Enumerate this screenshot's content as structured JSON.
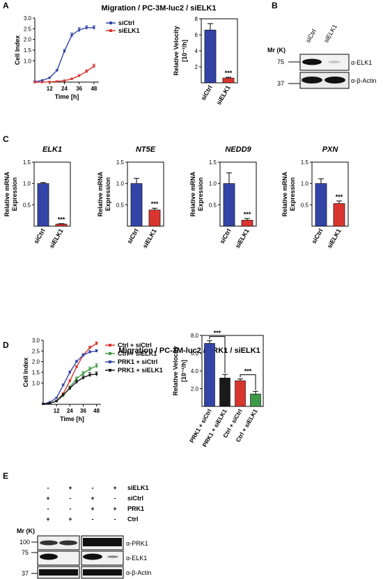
{
  "panels": {
    "A": {
      "letter": "A",
      "title": "Migration / PC-3M-luc2 / siELK1",
      "line": {
        "ylabel": "Cell Index",
        "xlabel": "Time [h]",
        "yticks": [
          "1.0",
          "1.5",
          "2.0",
          "2.5",
          "3.0"
        ],
        "xticks": [
          "12",
          "24",
          "36",
          "48"
        ]
      },
      "bar": {
        "ylabel_1": "Relative Velocity",
        "ylabel_2": "[10⁻²/h]",
        "yticks": [
          "2",
          "4",
          "6",
          "8"
        ],
        "categories": [
          "siCtrl",
          "siELK1"
        ],
        "sig": "***"
      }
    },
    "B": {
      "letter": "B",
      "mr_label": "Mr (K)",
      "lanes": [
        "siCtrl",
        "siELK1"
      ],
      "markers": [
        "75",
        "37"
      ],
      "antibodies": [
        "α-ELK1",
        "α-β-Actin"
      ]
    },
    "C": {
      "letter": "C",
      "ylabel_1": "Relative mRNA",
      "ylabel_2": "Expression",
      "yticks": [
        "0.5",
        "1.0",
        "1.5"
      ],
      "categories": [
        "siCtrl",
        "siELK1"
      ],
      "sig": "***"
    },
    "D": {
      "letter": "D",
      "title": "Migration / PC-3M-luc2 / PRK1 / siELK1",
      "line": {
        "ylabel": "Cell Index",
        "xlabel": "Time [h]",
        "yticks": [
          "1.0",
          "1.5",
          "2.0",
          "2.5",
          "3.0"
        ],
        "xticks": [
          "12",
          "24",
          "36",
          "48"
        ]
      },
      "bar": {
        "ylabel_1": "Relative Velocity",
        "ylabel_2": "[10⁻²/h]",
        "yticks": [
          "2.0",
          "4.0",
          "6.0",
          "8.0"
        ],
        "categories": [
          "PRK1 + siCtrl",
          "PRK1 + siELK1",
          "Ctrl + siCtrl",
          "Ctrl + siELK1"
        ],
        "sig": "***"
      }
    },
    "E": {
      "letter": "E",
      "rows": [
        {
          "label": "siELK1",
          "marks": [
            "-",
            "+",
            "-",
            "+"
          ]
        },
        {
          "label": "siCtrl",
          "marks": [
            "+",
            "-",
            "+",
            "-"
          ]
        },
        {
          "label": "PRK1",
          "marks": [
            "-",
            "-",
            "+",
            "+"
          ]
        },
        {
          "label": "Ctrl",
          "marks": [
            "+",
            "+",
            "-",
            "-"
          ]
        }
      ],
      "mr_label": "Mr (K)",
      "markers": [
        "100",
        "75",
        "37"
      ],
      "antibodies": [
        "α-PRK1",
        "α-ELK1",
        "α-β-Actin"
      ]
    }
  },
  "colors": {
    "siCtrl": "#3344a6",
    "siELK1": "#d8352f",
    "ctrl_siCtrl": "#d8352f",
    "ctrl_siELK1": "#3e9a46",
    "prk1_siCtrl": "#3344a6",
    "prk1_siELK1": "#1a1a1a"
  },
  "chart_data": [
    {
      "id": "A-line",
      "type": "line",
      "title": "Migration / PC-3M-luc2 / siELK1",
      "xlabel": "Time [h]",
      "ylabel": "Cell Index",
      "xlim": [
        0,
        52
      ],
      "ylim": [
        0,
        3.0
      ],
      "grid": false,
      "legend": "top-right",
      "series": [
        {
          "name": "siCtrl",
          "color": "#3344a6",
          "x": [
            0,
            6,
            12,
            18,
            24,
            30,
            36,
            42,
            48
          ],
          "y": [
            0.02,
            0.08,
            0.2,
            0.55,
            1.45,
            2.2,
            2.45,
            2.55,
            2.55
          ],
          "err": [
            0.02,
            0.02,
            0.03,
            0.05,
            0.08,
            0.1,
            0.1,
            0.09,
            0.09
          ]
        },
        {
          "name": "siELK1",
          "color": "#d8352f",
          "x": [
            0,
            6,
            12,
            18,
            24,
            30,
            36,
            42,
            48
          ],
          "y": [
            0.0,
            0.0,
            0.01,
            0.03,
            0.07,
            0.15,
            0.3,
            0.5,
            0.75
          ],
          "err": [
            0.01,
            0.01,
            0.01,
            0.02,
            0.02,
            0.04,
            0.05,
            0.07,
            0.09
          ]
        }
      ]
    },
    {
      "id": "A-bar",
      "type": "bar",
      "categories": [
        "siCtrl",
        "siELK1"
      ],
      "values": [
        6.6,
        0.6
      ],
      "errors": [
        0.8,
        0.1
      ],
      "colors": [
        "#3344a6",
        "#d8352f"
      ],
      "ylabel": "Relative Velocity [10⁻²/h]",
      "ylim": [
        0,
        8
      ],
      "annotations": [
        "***"
      ]
    },
    {
      "id": "C-ELK1",
      "type": "bar",
      "title": "ELK1",
      "categories": [
        "siCtrl",
        "siELK1"
      ],
      "values": [
        1.0,
        0.05
      ],
      "errors": [
        0.02,
        0.01
      ],
      "colors": [
        "#3344a6",
        "#d8352f"
      ],
      "ylabel": "Relative mRNA Expression",
      "ylim": [
        0,
        1.5
      ],
      "annotations": [
        "***"
      ]
    },
    {
      "id": "C-NT5E",
      "type": "bar",
      "title": "NT5E",
      "categories": [
        "siCtrl",
        "siELK1"
      ],
      "values": [
        1.0,
        0.38
      ],
      "errors": [
        0.12,
        0.04
      ],
      "colors": [
        "#3344a6",
        "#d8352f"
      ],
      "ylabel": "Relative mRNA Expression",
      "ylim": [
        0,
        1.5
      ],
      "annotations": [
        "***"
      ]
    },
    {
      "id": "C-NEDD9",
      "type": "bar",
      "title": "NEDD9",
      "categories": [
        "siCtrl",
        "siELK1"
      ],
      "values": [
        1.0,
        0.14
      ],
      "errors": [
        0.25,
        0.04
      ],
      "colors": [
        "#3344a6",
        "#d8352f"
      ],
      "ylabel": "Relative mRNA Expression",
      "ylim": [
        0,
        1.5
      ],
      "annotations": [
        "***"
      ]
    },
    {
      "id": "C-PXN",
      "type": "bar",
      "title": "PXN",
      "categories": [
        "siCtrl",
        "siELK1"
      ],
      "values": [
        1.0,
        0.53
      ],
      "errors": [
        0.11,
        0.06
      ],
      "colors": [
        "#3344a6",
        "#d8352f"
      ],
      "ylabel": "Relative mRNA Expression",
      "ylim": [
        0,
        1.5
      ],
      "annotations": [
        "***"
      ]
    },
    {
      "id": "D-line",
      "type": "line",
      "title": "Migration / PC-3M-luc2 / PRK1 / siELK1",
      "xlabel": "Time [h]",
      "ylabel": "Cell Index",
      "xlim": [
        0,
        52
      ],
      "ylim": [
        0,
        3.0
      ],
      "grid": false,
      "legend": "right",
      "series": [
        {
          "name": "Ctrl + siCtrl",
          "color": "#d8352f",
          "x": [
            0,
            6,
            12,
            18,
            24,
            30,
            36,
            42,
            48
          ],
          "y": [
            0.02,
            0.05,
            0.15,
            0.5,
            1.1,
            1.75,
            2.3,
            2.65,
            2.85
          ],
          "err": [
            0.02,
            0.02,
            0.03,
            0.04,
            0.05,
            0.06,
            0.07,
            0.07,
            0.07
          ]
        },
        {
          "name": "Ctrl + siELK1",
          "color": "#3e9a46",
          "x": [
            0,
            6,
            12,
            18,
            24,
            30,
            36,
            42,
            48
          ],
          "y": [
            0.02,
            0.05,
            0.15,
            0.4,
            0.8,
            1.2,
            1.45,
            1.65,
            1.8
          ],
          "err": [
            0.02,
            0.02,
            0.03,
            0.05,
            0.06,
            0.08,
            0.09,
            0.1,
            0.1
          ]
        },
        {
          "name": "PRK1 + siCtrl",
          "color": "#3344a6",
          "x": [
            0,
            6,
            12,
            18,
            24,
            30,
            36,
            42,
            48
          ],
          "y": [
            0.02,
            0.1,
            0.3,
            0.9,
            1.5,
            2.0,
            2.3,
            2.45,
            2.5
          ],
          "err": [
            0.02,
            0.02,
            0.03,
            0.05,
            0.06,
            0.06,
            0.06,
            0.06,
            0.06
          ]
        },
        {
          "name": "PRK1 + siELK1",
          "color": "#1a1a1a",
          "x": [
            0,
            6,
            12,
            18,
            24,
            30,
            36,
            42,
            48
          ],
          "y": [
            0.02,
            0.05,
            0.15,
            0.45,
            0.75,
            1.05,
            1.25,
            1.38,
            1.42
          ],
          "err": [
            0.02,
            0.02,
            0.03,
            0.05,
            0.07,
            0.08,
            0.09,
            0.1,
            0.1
          ]
        }
      ]
    },
    {
      "id": "D-bar",
      "type": "bar",
      "categories": [
        "PRK1 + siCtrl",
        "PRK1 + siELK1",
        "Ctrl + siCtrl",
        "Ctrl + siELK1"
      ],
      "values": [
        7.1,
        3.2,
        2.9,
        1.4
      ],
      "errors": [
        0.3,
        0.4,
        0.2,
        0.3
      ],
      "colors": [
        "#3344a6",
        "#1a1a1a",
        "#d8352f",
        "#3e9a46"
      ],
      "ylabel": "Relative Velocity [10⁻²/h]",
      "ylim": [
        0,
        8
      ],
      "annotations": [
        "***",
        "***"
      ]
    }
  ]
}
